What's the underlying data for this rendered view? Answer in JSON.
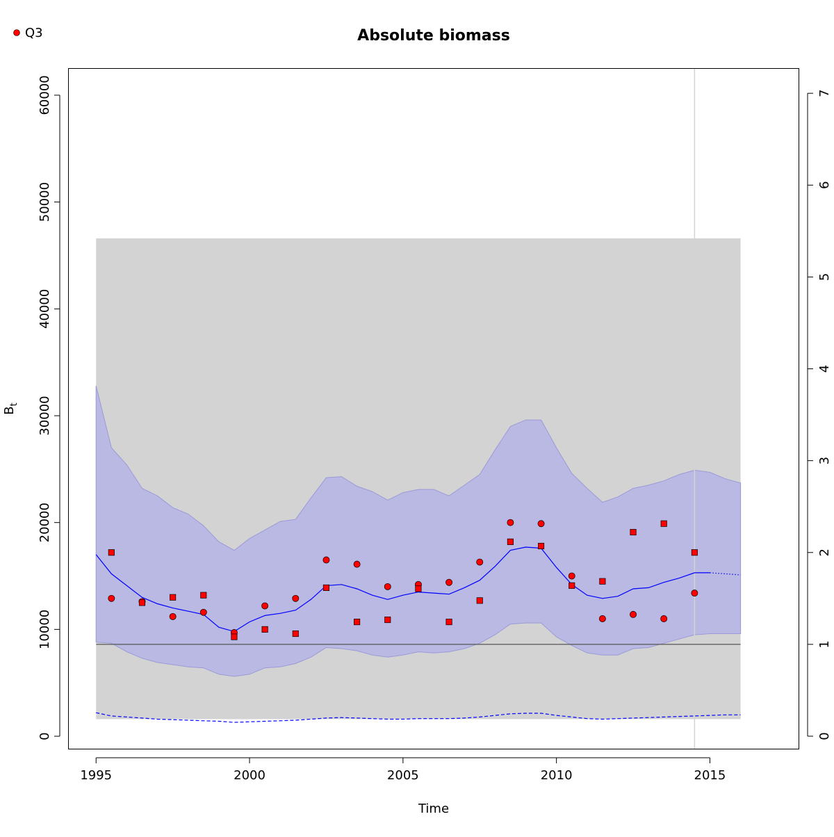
{
  "chart_data": {
    "type": "line",
    "title": "Absolute biomass",
    "xlabel": "Time",
    "ylabel": "B",
    "ylabel_subscript": "t",
    "xlim": [
      1994.1,
      2017.9
    ],
    "ylim": [
      -1200,
      62500
    ],
    "y2lim": [
      -0.14,
      7.27
    ],
    "x_ticks": [
      1995,
      2000,
      2005,
      2010,
      2015
    ],
    "y_ticks": [
      0,
      10000,
      20000,
      30000,
      40000,
      50000,
      60000
    ],
    "y2_ticks": [
      0,
      1,
      2,
      3,
      4,
      5,
      6,
      7
    ],
    "legend": {
      "position": "top-left",
      "entries": [
        {
          "label": "Q3",
          "marker": "circle",
          "color": "#ff0000"
        }
      ]
    },
    "grey_band": {
      "x_range": [
        1995,
        2016
      ],
      "y_range": [
        1600,
        46600
      ],
      "color": "#d3d3d3"
    },
    "reference_line": {
      "y": 8600,
      "color": "#555555"
    },
    "vertical_line": {
      "x": 2014.5,
      "color": "#d3d3d3"
    },
    "ci_band": {
      "color": "#b0b0e8",
      "x": [
        1995,
        1995.5,
        1996,
        1996.5,
        1997,
        1997.5,
        1998,
        1998.5,
        1999,
        1999.5,
        2000,
        2000.5,
        2001,
        2001.5,
        2002,
        2002.5,
        2003,
        2003.5,
        2004,
        2004.5,
        2005,
        2005.5,
        2006,
        2006.5,
        2007,
        2007.5,
        2008,
        2008.5,
        2009,
        2009.5,
        2010,
        2010.5,
        2011,
        2011.5,
        2012,
        2012.5,
        2013,
        2013.5,
        2014,
        2014.5,
        2015,
        2015.5,
        2016
      ],
      "upper": [
        32800,
        27000,
        25400,
        23200,
        22500,
        21400,
        20800,
        19700,
        18200,
        17400,
        18500,
        19300,
        20100,
        20300,
        22300,
        24200,
        24300,
        23400,
        22900,
        22100,
        22800,
        23100,
        23100,
        22500,
        23500,
        24500,
        26800,
        29000,
        29600,
        29600,
        27000,
        24600,
        23200,
        21900,
        22400,
        23200,
        23500,
        23900,
        24500,
        24900,
        24700,
        24100,
        23700
      ],
      "lower": [
        8800,
        8700,
        7900,
        7300,
        6900,
        6700,
        6500,
        6400,
        5800,
        5600,
        5800,
        6400,
        6500,
        6800,
        7400,
        8300,
        8200,
        8000,
        7600,
        7400,
        7600,
        7900,
        7800,
        7900,
        8200,
        8700,
        9500,
        10500,
        10600,
        10600,
        9300,
        8500,
        7800,
        7600,
        7600,
        8200,
        8300,
        8700,
        9100,
        9500,
        9600,
        9600,
        9600
      ]
    },
    "series": [
      {
        "name": "",
        "style": "solid",
        "color": "#0000ff",
        "x": [
          1995,
          1995.5,
          1996,
          1996.5,
          1997,
          1997.5,
          1998,
          1998.5,
          1999,
          1999.5,
          2000,
          2000.5,
          2001,
          2001.5,
          2002,
          2002.5,
          2003,
          2003.5,
          2004,
          2004.5,
          2005,
          2005.5,
          2006,
          2006.5,
          2007,
          2007.5,
          2008,
          2008.5,
          2009,
          2009.5,
          2010,
          2010.5,
          2011,
          2011.5,
          2012,
          2012.5,
          2013,
          2013.5,
          2014,
          2014.5,
          2015
        ],
        "values": [
          17000,
          15200,
          14100,
          13000,
          12400,
          12000,
          11700,
          11400,
          10200,
          9800,
          10700,
          11300,
          11500,
          11800,
          12800,
          14100,
          14200,
          13800,
          13200,
          12800,
          13200,
          13500,
          13400,
          13300,
          13900,
          14600,
          15900,
          17400,
          17700,
          17600,
          15800,
          14200,
          13200,
          12900,
          13100,
          13800,
          13900,
          14400,
          14800,
          15300,
          15300
        ]
      },
      {
        "name": "",
        "style": "dotted",
        "color": "#0000ff",
        "x": [
          2015,
          2015.5,
          2016
        ],
        "values": [
          15300,
          15200,
          15100
        ]
      },
      {
        "name": "",
        "style": "dashed",
        "color": "#0000ff",
        "x": [
          1995,
          1995.5,
          1996,
          1996.5,
          1997,
          1997.5,
          1998,
          1998.5,
          1999,
          1999.5,
          2000,
          2000.5,
          2001,
          2001.5,
          2002,
          2002.5,
          2003,
          2003.5,
          2004,
          2004.5,
          2005,
          2005.5,
          2006,
          2006.5,
          2007,
          2007.5,
          2008,
          2008.5,
          2009,
          2009.5,
          2010,
          2010.5,
          2011,
          2011.5,
          2012,
          2012.5,
          2013,
          2013.5,
          2014,
          2014.5,
          2015,
          2015.5,
          2016
        ],
        "values": [
          2200,
          1900,
          1800,
          1700,
          1600,
          1550,
          1500,
          1450,
          1400,
          1300,
          1350,
          1400,
          1450,
          1500,
          1600,
          1700,
          1750,
          1700,
          1650,
          1600,
          1600,
          1650,
          1650,
          1650,
          1700,
          1800,
          1950,
          2100,
          2150,
          2150,
          1950,
          1800,
          1650,
          1600,
          1650,
          1700,
          1750,
          1800,
          1850,
          1900,
          1950,
          2000,
          2000
        ]
      },
      {
        "name": "Q3",
        "type": "scatter",
        "marker": "circle",
        "color": "#ff0000",
        "x": [
          1995.5,
          1996.5,
          1997.5,
          1998.5,
          1999.5,
          2000.5,
          2001.5,
          2002.5,
          2003.5,
          2004.5,
          2005.5,
          2006.5,
          2007.5,
          2008.5,
          2009.5,
          2010.5,
          2011.5,
          2012.5,
          2013.5,
          2014.5
        ],
        "values": [
          12900,
          12600,
          11200,
          11600,
          9700,
          12200,
          12900,
          16500,
          16100,
          14000,
          14200,
          14400,
          16300,
          20000,
          19900,
          15000,
          11000,
          11400,
          11000,
          13400
        ]
      },
      {
        "name": "",
        "type": "scatter",
        "marker": "square",
        "color": "#ff0000",
        "x": [
          1995.5,
          1996.5,
          1997.5,
          1998.5,
          1999.5,
          2000.5,
          2001.5,
          2002.5,
          2003.5,
          2004.5,
          2005.5,
          2006.5,
          2007.5,
          2008.5,
          2009.5,
          2010.5,
          2011.5,
          2012.5,
          2013.5,
          2014.5
        ],
        "values": [
          17200,
          12500,
          13000,
          13200,
          9300,
          10000,
          9600,
          13900,
          10700,
          10900,
          13800,
          10700,
          12700,
          18200,
          17800,
          14100,
          14500,
          19100,
          19900,
          17200
        ]
      }
    ]
  }
}
